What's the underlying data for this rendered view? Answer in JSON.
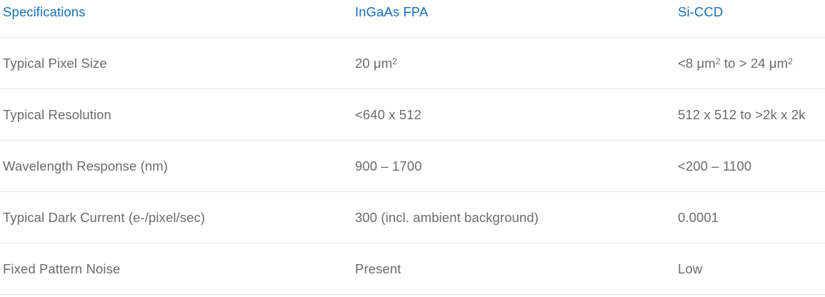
{
  "table": {
    "headers": [
      "Specifications",
      "InGaAs FPA",
      "Si-CCD"
    ],
    "rows": [
      {
        "spec": "Typical Pixel Size",
        "ingaas": {
          "pre": "20 μm",
          "sup": "2",
          "post": ""
        },
        "siccd": {
          "pre": "<8 μm",
          "sup": "2",
          "mid": " to > 24 μm",
          "sup2": "2"
        }
      },
      {
        "spec": "Typical Resolution",
        "ingaas": "<640 x 512",
        "siccd": "512 x 512 to >2k x 2k"
      },
      {
        "spec": "Wavelength Response (nm)",
        "ingaas": "900 – 1700",
        "siccd": "<200 – 1100"
      },
      {
        "spec": "Typical Dark Current (e-/pixel/sec)",
        "ingaas": "300 (incl. ambient background)",
        "siccd": "0.0001"
      },
      {
        "spec": "Fixed Pattern Noise",
        "ingaas": "Present",
        "siccd": "Low"
      }
    ]
  }
}
